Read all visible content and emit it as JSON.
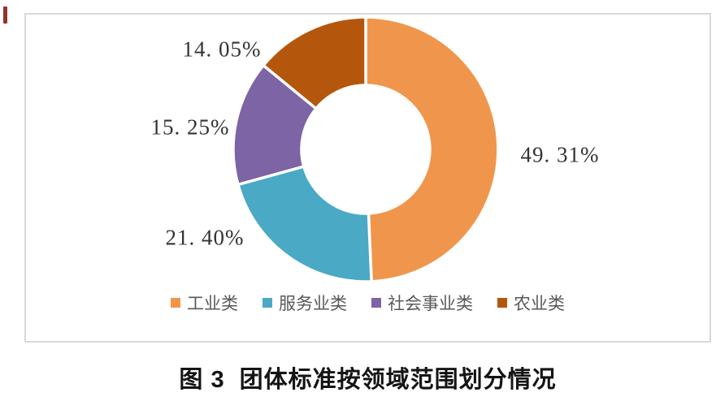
{
  "page": {
    "background": "#FFFFFF",
    "edge_mark_color": "#98322A"
  },
  "panel": {
    "border_color": "#D9D9D9",
    "background": "#FFFFFF"
  },
  "chart_data": {
    "type": "pie",
    "subtype": "donut",
    "title": "",
    "categories": [
      "工业类",
      "服务业类",
      "社会事业类",
      "农业类"
    ],
    "values": [
      49.31,
      21.4,
      15.25,
      14.05
    ],
    "display_labels": [
      "49. 31%",
      "21. 40%",
      "15. 25%",
      "14. 05%"
    ],
    "colors": [
      "#F0964C",
      "#4AA9C4",
      "#7C64A5",
      "#B4570D"
    ],
    "separator_color": "#FFFFFF",
    "label_text_color": "#333333",
    "legend_position": "bottom",
    "legend_text_color": "#595959",
    "start_angle": "top",
    "direction": "clockwise",
    "inner_radius_ratio": 0.485
  },
  "figure": {
    "caption_number": "图 3",
    "caption_title": "团体标准按领域范围划分情况"
  }
}
